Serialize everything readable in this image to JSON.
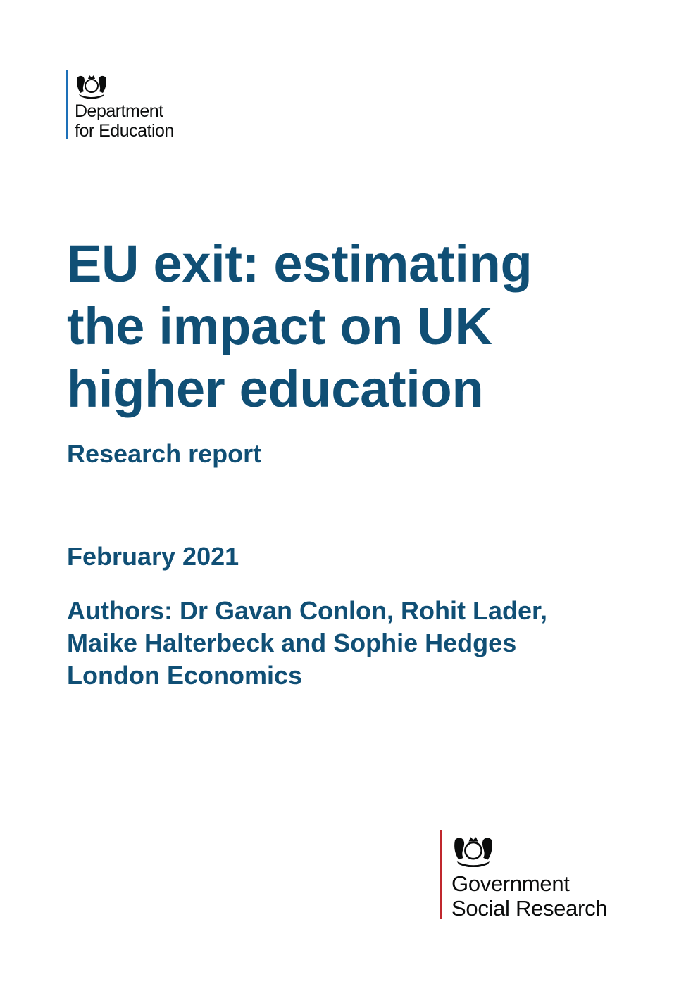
{
  "header_logo": {
    "line1": "Department",
    "line2": "for Education",
    "icon": "royal-coat-of-arms-icon"
  },
  "title_lines": [
    "EU exit: estimating",
    "the impact on UK",
    "higher education"
  ],
  "subtitle": "Research report",
  "date": "February 2021",
  "authors_lines": [
    "Authors: Dr Gavan Conlon, Rohit Lader,",
    "Maike Halterbeck and Sophie Hedges",
    "London Economics"
  ],
  "footer_logo": {
    "line1": "Government",
    "line2": "Social Research",
    "icon": "royal-coat-of-arms-icon"
  },
  "colors": {
    "title": "#104f75",
    "dfe_rule": "#1d70b8",
    "gsr_rule": "#c0272d"
  }
}
